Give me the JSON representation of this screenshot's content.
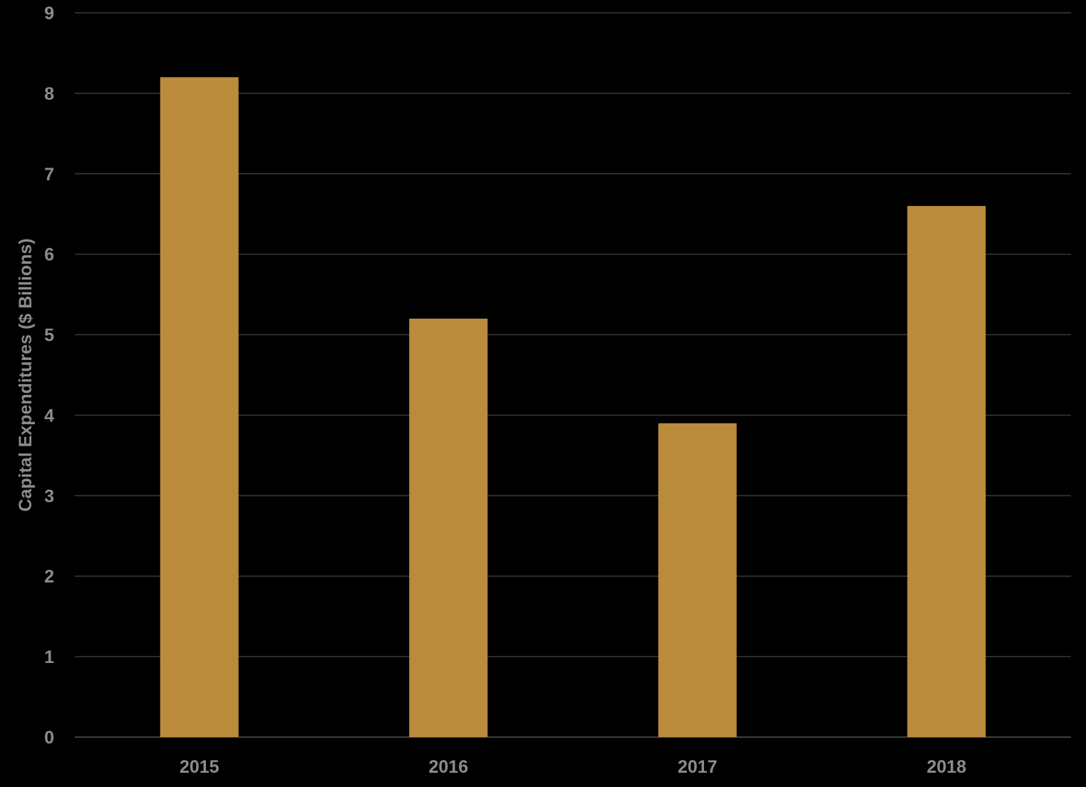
{
  "chart_data": {
    "type": "bar",
    "title": "",
    "xlabel": "",
    "ylabel": "Capital Expenditures ($ Billions)",
    "categories": [
      "2015",
      "2016",
      "2017",
      "2018"
    ],
    "values": [
      8.2,
      5.2,
      3.9,
      6.6
    ],
    "ylim": [
      0,
      9
    ],
    "yticks": [
      "0",
      "1",
      "2",
      "3",
      "4",
      "5",
      "6",
      "7",
      "8",
      "9"
    ],
    "grid": true,
    "legend": "none",
    "colors": {
      "bar": "#B98B3B",
      "background": "#000000",
      "gridline": "#3a3a3a",
      "text": "#8c8c8c"
    }
  }
}
